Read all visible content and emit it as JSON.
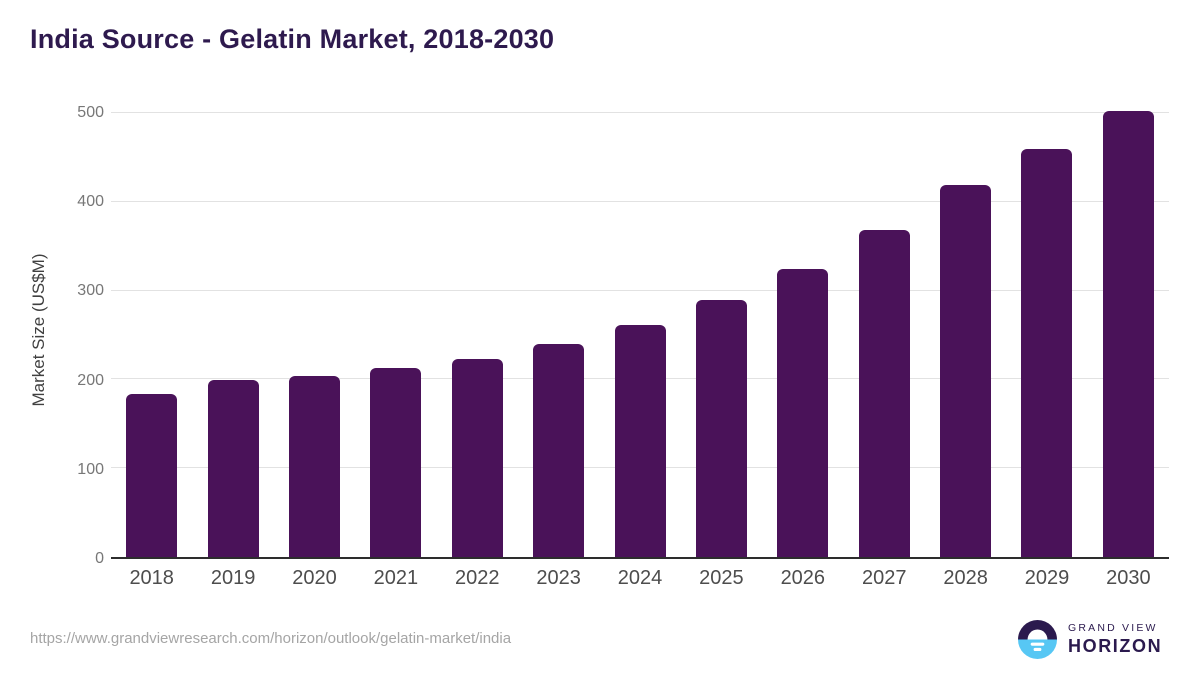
{
  "chart_data": {
    "type": "bar",
    "title": "India Source - Gelatin Market, 2018-2030",
    "categories": [
      "2018",
      "2019",
      "2020",
      "2021",
      "2022",
      "2023",
      "2024",
      "2025",
      "2026",
      "2027",
      "2028",
      "2029",
      "2030"
    ],
    "values": [
      184,
      199,
      204,
      213,
      223,
      240,
      261,
      289,
      324,
      368,
      419,
      459,
      502
    ],
    "xlabel": "",
    "ylabel": "Market Size (US$M)",
    "ylim": [
      0,
      500
    ],
    "yticks": [
      0,
      100,
      200,
      300,
      400,
      500
    ],
    "grid": "horizontal",
    "legend_position": "none",
    "bar_color": "#4a1259"
  },
  "footer": {
    "source_url": "https://www.grandviewresearch.com/horizon/outlook/gelatin-market/india",
    "brand": {
      "line1": "GRAND VIEW",
      "line2": "HORIZON"
    }
  },
  "colors": {
    "title": "#2e1a4e",
    "bar": "#4a1259",
    "axis_line": "#2d2d2d",
    "gridline": "#e2e2e2",
    "y_tick_text": "#777777",
    "x_tick_text": "#4d4d4d",
    "axis_title_text": "#404040",
    "url_text": "#a5a5a5",
    "logo_dark": "#2b1a4e",
    "logo_blue": "#57c7f4"
  }
}
